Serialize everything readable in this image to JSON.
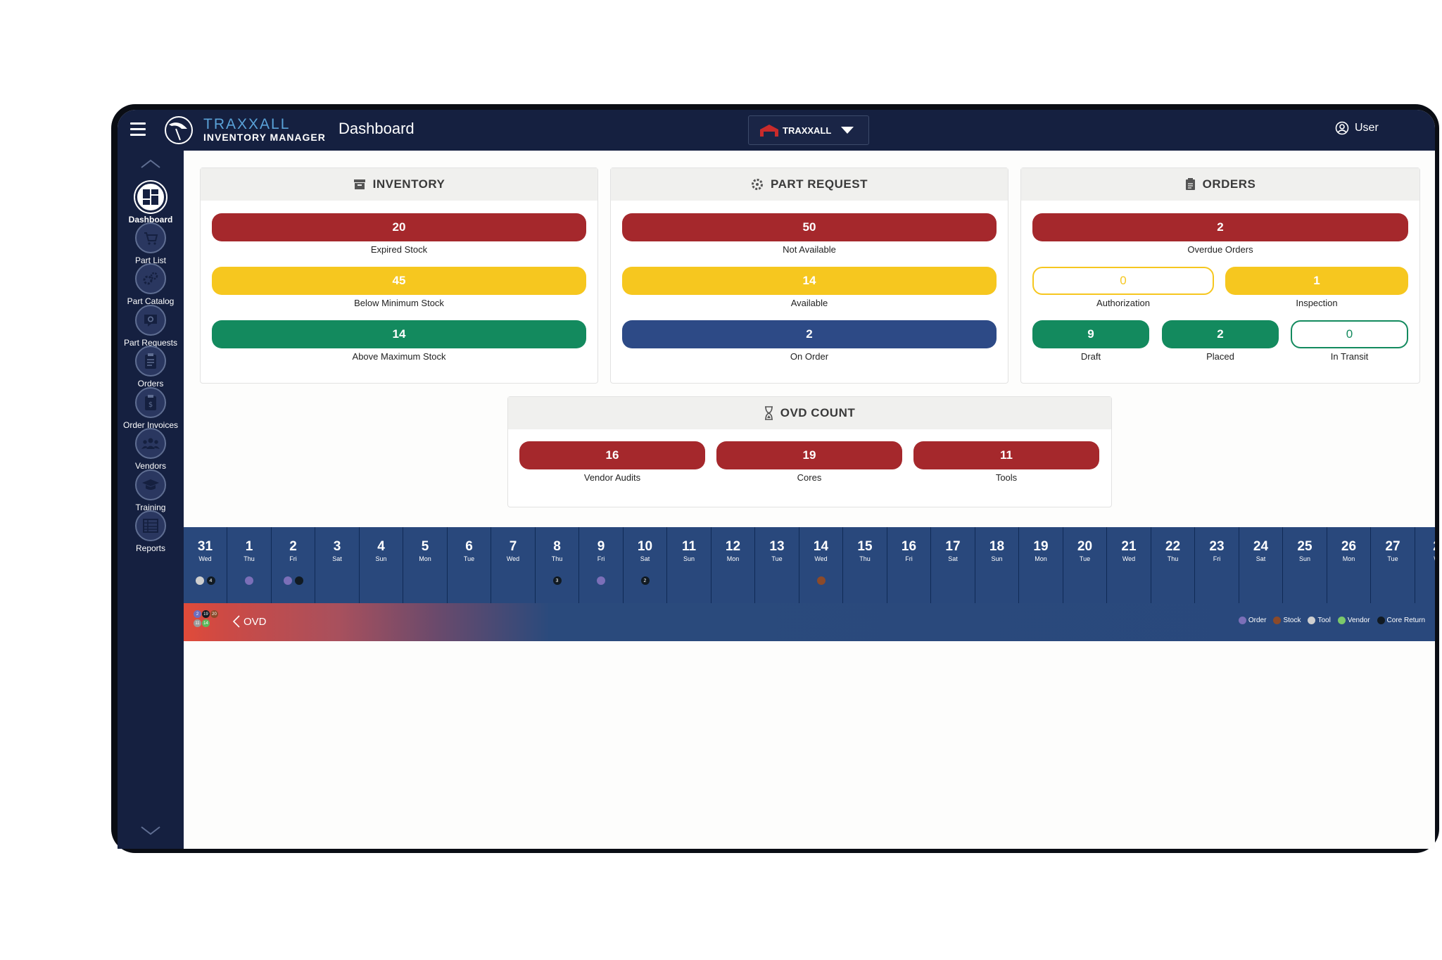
{
  "app": {
    "brand_top": "TRAXXALL",
    "brand_bottom": "INVENTORY MANAGER",
    "page_title": "Dashboard",
    "org": "TRAXXALL",
    "user": "User"
  },
  "sidebar": {
    "items": [
      {
        "label": "Dashboard",
        "icon": "dashboard-icon"
      },
      {
        "label": "Part List",
        "icon": "cart-icon"
      },
      {
        "label": "Part Catalog",
        "icon": "gears-icon"
      },
      {
        "label": "Part Requests",
        "icon": "request-icon"
      },
      {
        "label": "Orders",
        "icon": "clipboard-icon"
      },
      {
        "label": "Order Invoices",
        "icon": "invoice-icon"
      },
      {
        "label": "Vendors",
        "icon": "people-icon"
      },
      {
        "label": "Training",
        "icon": "graduation-cap-icon"
      },
      {
        "label": "Reports",
        "icon": "table-icon"
      }
    ]
  },
  "inventory": {
    "title": "INVENTORY",
    "items": [
      {
        "value": "20",
        "label": "Expired Stock"
      },
      {
        "value": "45",
        "label": "Below Minimum Stock"
      },
      {
        "value": "14",
        "label": "Above Maximum Stock"
      }
    ]
  },
  "part_request": {
    "title": "PART REQUEST",
    "items": [
      {
        "value": "50",
        "label": "Not Available"
      },
      {
        "value": "14",
        "label": "Available"
      },
      {
        "value": "2",
        "label": "On Order"
      }
    ]
  },
  "orders": {
    "title": "ORDERS",
    "items": [
      {
        "value": "2",
        "label": "Overdue Orders"
      },
      {
        "value": "0",
        "label": "Authorization"
      },
      {
        "value": "1",
        "label": "Inspection"
      },
      {
        "value": "9",
        "label": "Draft"
      },
      {
        "value": "2",
        "label": "Placed"
      },
      {
        "value": "0",
        "label": "In Transit"
      }
    ]
  },
  "ovd": {
    "title": "OVD COUNT",
    "items": [
      {
        "value": "16",
        "label": "Vendor Audits"
      },
      {
        "value": "19",
        "label": "Cores"
      },
      {
        "value": "11",
        "label": "Tools"
      }
    ]
  },
  "calendar": {
    "days": [
      {
        "d": "31",
        "w": "Wed",
        "dots": [
          {
            "c": "#cfcfcf",
            "t": ""
          },
          {
            "c": "#111a22",
            "t": "4"
          }
        ]
      },
      {
        "d": "1",
        "w": "Thu",
        "dots": [
          {
            "c": "#7b6fb8",
            "t": ""
          }
        ]
      },
      {
        "d": "2",
        "w": "Fri",
        "dots": [
          {
            "c": "#7b6fb8",
            "t": ""
          },
          {
            "c": "#111a22",
            "t": ""
          }
        ]
      },
      {
        "d": "3",
        "w": "Sat",
        "dots": []
      },
      {
        "d": "4",
        "w": "Sun",
        "dots": []
      },
      {
        "d": "5",
        "w": "Mon",
        "dots": []
      },
      {
        "d": "6",
        "w": "Tue",
        "dots": []
      },
      {
        "d": "7",
        "w": "Wed",
        "dots": []
      },
      {
        "d": "8",
        "w": "Thu",
        "dots": [
          {
            "c": "#111a22",
            "t": "3"
          }
        ]
      },
      {
        "d": "9",
        "w": "Fri",
        "dots": [
          {
            "c": "#7b6fb8",
            "t": ""
          }
        ]
      },
      {
        "d": "10",
        "w": "Sat",
        "dots": [
          {
            "c": "#111a22",
            "t": "2"
          }
        ]
      },
      {
        "d": "11",
        "w": "Sun",
        "dots": []
      },
      {
        "d": "12",
        "w": "Mon",
        "dots": []
      },
      {
        "d": "13",
        "w": "Tue",
        "dots": []
      },
      {
        "d": "14",
        "w": "Wed",
        "dots": [
          {
            "c": "#8b4a2a",
            "t": ""
          }
        ]
      },
      {
        "d": "15",
        "w": "Thu",
        "dots": []
      },
      {
        "d": "16",
        "w": "Fri",
        "dots": []
      },
      {
        "d": "17",
        "w": "Sat",
        "dots": []
      },
      {
        "d": "18",
        "w": "Sun",
        "dots": []
      },
      {
        "d": "19",
        "w": "Mon",
        "dots": []
      },
      {
        "d": "20",
        "w": "Tue",
        "dots": []
      },
      {
        "d": "21",
        "w": "Wed",
        "dots": []
      },
      {
        "d": "22",
        "w": "Thu",
        "dots": []
      },
      {
        "d": "23",
        "w": "Fri",
        "dots": []
      },
      {
        "d": "24",
        "w": "Sat",
        "dots": []
      },
      {
        "d": "25",
        "w": "Sun",
        "dots": []
      },
      {
        "d": "26",
        "w": "Mon",
        "dots": []
      },
      {
        "d": "27",
        "w": "Tue",
        "dots": []
      },
      {
        "d": "2",
        "w": "W",
        "dots": []
      }
    ]
  },
  "ovd_bar": {
    "label": "OVD",
    "minis": [
      {
        "t": "2",
        "c": "#6e6fc0"
      },
      {
        "t": "19",
        "c": "#111a22"
      },
      {
        "t": "20",
        "c": "#8b4a2a"
      },
      {
        "t": "11",
        "c": "#9a9a9a"
      },
      {
        "t": "14",
        "c": "#5cb85c"
      }
    ]
  },
  "legend": [
    {
      "label": "Order",
      "color": "#7b6fb8"
    },
    {
      "label": "Stock",
      "color": "#8b4a2a"
    },
    {
      "label": "Tool",
      "color": "#cfcfcf"
    },
    {
      "label": "Vendor",
      "color": "#7cc96a"
    },
    {
      "label": "Core Return",
      "color": "#111a22"
    }
  ],
  "colors": {
    "nav": "#152040",
    "red": "#a5282c",
    "yellow": "#f6c71f",
    "green": "#138a5e",
    "blue": "#2d4a86"
  }
}
